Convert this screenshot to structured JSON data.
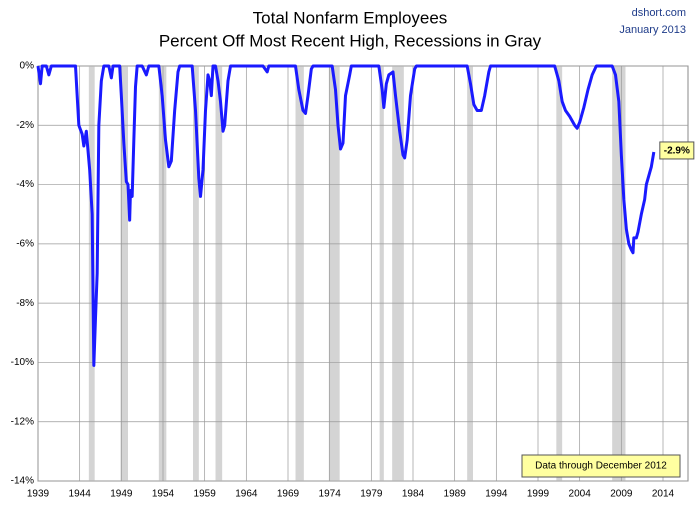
{
  "chart_data": {
    "type": "line",
    "title": "Total Nonfarm Employees",
    "subtitle": "Percent Off Most Recent High, Recessions in Gray",
    "source": "dshort.com",
    "date": "January 2013",
    "note": "Data through December 2012",
    "annotation": "-2.9%",
    "xlim": [
      1939,
      2017
    ],
    "xticks": [
      1939,
      1944,
      1949,
      1954,
      1959,
      1964,
      1969,
      1974,
      1979,
      1984,
      1989,
      1994,
      1999,
      2004,
      2009,
      2014
    ],
    "ylim": [
      -14,
      0
    ],
    "yticks": [
      {
        "value": 0,
        "label": "0%"
      },
      {
        "value": -2,
        "label": "-2%"
      },
      {
        "value": -4,
        "label": "-4%"
      },
      {
        "value": -6,
        "label": "-6%"
      },
      {
        "value": -8,
        "label": "-8%"
      },
      {
        "value": -10,
        "label": "-10%"
      },
      {
        "value": -12,
        "label": "-12%"
      },
      {
        "value": -14,
        "label": "-14%"
      }
    ],
    "grid": true,
    "recession_color": "#d4d4d4",
    "recessions": [
      [
        1945.1,
        1945.8
      ],
      [
        1948.9,
        1949.8
      ],
      [
        1953.5,
        1954.4
      ],
      [
        1957.6,
        1958.3
      ],
      [
        1960.3,
        1961.1
      ],
      [
        1969.9,
        1970.9
      ],
      [
        1973.9,
        1975.2
      ],
      [
        1980.0,
        1980.5
      ],
      [
        1981.5,
        1982.9
      ],
      [
        1990.5,
        1991.2
      ],
      [
        2001.2,
        2001.9
      ],
      [
        2007.9,
        2009.5
      ]
    ],
    "series": [
      {
        "color": "#1a1aff",
        "x": [
          1939.0,
          1939.3,
          1939.5,
          1940.0,
          1940.3,
          1940.6,
          1942.0,
          1943.5,
          1943.7,
          1943.9,
          1944.3,
          1944.5,
          1944.8,
          1945.2,
          1945.5,
          1945.7,
          1945.9,
          1946.1,
          1946.3,
          1946.6,
          1946.9,
          1947.5,
          1947.8,
          1948.0,
          1948.8,
          1949.0,
          1949.3,
          1949.6,
          1949.8,
          1950.0,
          1950.1,
          1950.3,
          1950.5,
          1950.7,
          1950.9,
          1951.5,
          1952.0,
          1952.3,
          1953.5,
          1953.9,
          1954.3,
          1954.7,
          1955.0,
          1955.4,
          1955.8,
          1956.0,
          1957.5,
          1957.9,
          1958.3,
          1958.5,
          1958.8,
          1959.1,
          1959.4,
          1959.6,
          1959.8,
          1960.0,
          1960.3,
          1960.6,
          1960.9,
          1961.2,
          1961.4,
          1961.8,
          1962.1,
          1966.0,
          1966.5,
          1966.7,
          1969.9,
          1970.3,
          1970.8,
          1971.1,
          1971.4,
          1971.8,
          1972.0,
          1974.3,
          1974.7,
          1975.0,
          1975.3,
          1975.6,
          1975.9,
          1976.4,
          1976.6,
          1979.9,
          1980.3,
          1980.5,
          1980.8,
          1981.1,
          1981.6,
          1981.9,
          1982.4,
          1982.8,
          1983.0,
          1983.3,
          1983.7,
          1984.2,
          1984.4,
          1990.5,
          1990.9,
          1991.3,
          1991.7,
          1992.2,
          1992.6,
          1993.1,
          1993.3,
          2001.0,
          2001.5,
          2001.9,
          2002.3,
          2002.8,
          2003.4,
          2003.7,
          2004.0,
          2004.5,
          2005.0,
          2005.5,
          2006.0,
          2007.9,
          2008.3,
          2008.7,
          2009.0,
          2009.3,
          2009.6,
          2009.9,
          2010.2,
          2010.4,
          2010.5,
          2010.8,
          2011.0,
          2011.4,
          2011.8,
          2012.0,
          2012.4,
          2012.6,
          2012.9
        ],
        "values": [
          0,
          -0.6,
          0,
          0,
          -0.3,
          0,
          0,
          0,
          -1.0,
          -2.0,
          -2.3,
          -2.7,
          -2.2,
          -3.5,
          -5.0,
          -10.1,
          -8.5,
          -7.0,
          -2.0,
          -0.5,
          0,
          0,
          -0.4,
          0,
          0,
          -1.0,
          -2.6,
          -3.9,
          -4.0,
          -5.2,
          -4.2,
          -4.4,
          -2.5,
          -0.7,
          0,
          0,
          -0.3,
          0,
          0,
          -1.0,
          -2.5,
          -3.4,
          -3.2,
          -1.5,
          -0.2,
          0,
          0,
          -1.5,
          -3.8,
          -4.4,
          -3.5,
          -1.5,
          -0.3,
          -0.5,
          -1.0,
          0,
          0,
          -0.5,
          -1.2,
          -2.2,
          -2.0,
          -0.5,
          0,
          0,
          -0.2,
          0,
          0,
          -0.8,
          -1.5,
          -1.6,
          -1.0,
          -0.1,
          0,
          0,
          -0.8,
          -2.0,
          -2.8,
          -2.6,
          -1.0,
          -0.3,
          0,
          0,
          -0.8,
          -1.4,
          -0.6,
          -0.3,
          -0.2,
          -1.0,
          -2.2,
          -3.0,
          -3.1,
          -2.5,
          -1.0,
          -0.1,
          0,
          0,
          -0.6,
          -1.3,
          -1.5,
          -1.5,
          -1.0,
          -0.2,
          0,
          0,
          -0.5,
          -1.2,
          -1.5,
          -1.7,
          -2.0,
          -2.1,
          -1.9,
          -1.4,
          -0.8,
          -0.3,
          0,
          0,
          -0.3,
          -1.2,
          -3.0,
          -4.5,
          -5.5,
          -6.0,
          -6.2,
          -6.3,
          -5.8,
          -5.8,
          -5.6,
          -5.0,
          -4.5,
          -4.0,
          -3.6,
          -3.4,
          -2.9
        ]
      }
    ]
  }
}
